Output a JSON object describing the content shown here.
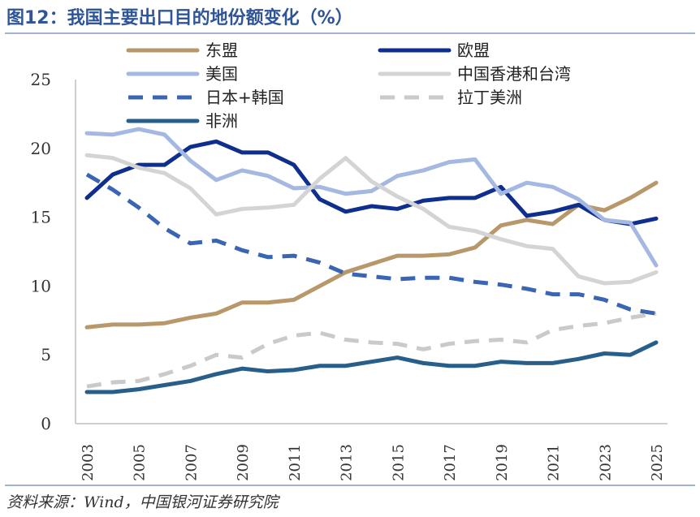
{
  "page": {
    "title": "图12：我国主要出口目的地份额变化（%）",
    "source": "资料来源：Wind，中国银河证券研究院"
  },
  "chart_data": {
    "type": "line",
    "title": "我国主要出口目的地份额变化（%）",
    "xlabel": "",
    "ylabel": "",
    "ylim": [
      0,
      25
    ],
    "yticks": [
      0,
      5,
      10,
      15,
      20,
      25
    ],
    "x": [
      2003,
      2004,
      2005,
      2006,
      2007,
      2008,
      2009,
      2010,
      2011,
      2012,
      2013,
      2014,
      2015,
      2016,
      2017,
      2018,
      2019,
      2020,
      2021,
      2022,
      2023,
      2024,
      2025
    ],
    "xticks": [
      "2003",
      "2005",
      "2007",
      "2009",
      "2011",
      "2013",
      "2015",
      "2017",
      "2019",
      "2021",
      "2023",
      "2025"
    ],
    "grid": false,
    "legend": "top",
    "series": [
      {
        "name": "东盟",
        "color": "#b8976a",
        "dash": "solid",
        "values": [
          7.0,
          7.2,
          7.2,
          7.3,
          7.7,
          8.0,
          8.8,
          8.8,
          9.0,
          10.0,
          11.0,
          11.6,
          12.2,
          12.2,
          12.3,
          12.8,
          14.4,
          14.8,
          14.5,
          15.9,
          15.5,
          16.4,
          17.5
        ]
      },
      {
        "name": "欧盟",
        "color": "#0f2f8f",
        "dash": "solid",
        "values": [
          16.4,
          18.1,
          18.8,
          18.8,
          20.1,
          20.5,
          19.7,
          19.7,
          18.8,
          16.3,
          15.4,
          15.8,
          15.6,
          16.2,
          16.4,
          16.4,
          17.2,
          15.1,
          15.4,
          15.9,
          14.8,
          14.5,
          14.9
        ]
      },
      {
        "name": "美国",
        "color": "#a4b8e2",
        "dash": "solid",
        "values": [
          21.1,
          21.0,
          21.4,
          21.0,
          19.1,
          17.7,
          18.4,
          18.0,
          17.1,
          17.2,
          16.7,
          16.9,
          18.0,
          18.4,
          19.0,
          19.2,
          16.7,
          17.5,
          17.2,
          16.3,
          14.8,
          14.6,
          11.5
        ]
      },
      {
        "name": "中国香港和台湾",
        "color": "#d4d4d4",
        "dash": "solid",
        "values": [
          19.5,
          19.3,
          18.6,
          18.2,
          17.1,
          15.2,
          15.6,
          15.7,
          15.9,
          17.8,
          19.3,
          17.6,
          16.5,
          15.6,
          14.3,
          14.0,
          13.4,
          12.9,
          12.7,
          10.7,
          10.2,
          10.3,
          11.0
        ]
      },
      {
        "name": "日本+韩国",
        "color": "#3a65b5",
        "dash": "dash",
        "values": [
          18.1,
          17.0,
          15.7,
          14.2,
          13.1,
          13.3,
          12.6,
          12.1,
          12.2,
          11.7,
          10.9,
          10.7,
          10.5,
          10.6,
          10.6,
          10.3,
          10.1,
          9.8,
          9.4,
          9.4,
          9.0,
          8.3,
          8.0
        ]
      },
      {
        "name": "拉丁美洲",
        "color": "#cacaca",
        "dash": "dash",
        "values": [
          2.7,
          3.0,
          3.1,
          3.6,
          4.2,
          5.0,
          4.8,
          5.8,
          6.4,
          6.6,
          6.1,
          5.9,
          5.8,
          5.4,
          5.8,
          6.0,
          6.1,
          5.9,
          6.8,
          7.1,
          7.3,
          7.7,
          8.0
        ]
      },
      {
        "name": "非洲",
        "color": "#285f8a",
        "dash": "solid",
        "values": [
          2.3,
          2.3,
          2.5,
          2.8,
          3.1,
          3.6,
          4.0,
          3.8,
          3.9,
          4.2,
          4.2,
          4.5,
          4.8,
          4.4,
          4.2,
          4.2,
          4.5,
          4.4,
          4.4,
          4.7,
          5.1,
          5.0,
          5.9
        ]
      }
    ]
  }
}
